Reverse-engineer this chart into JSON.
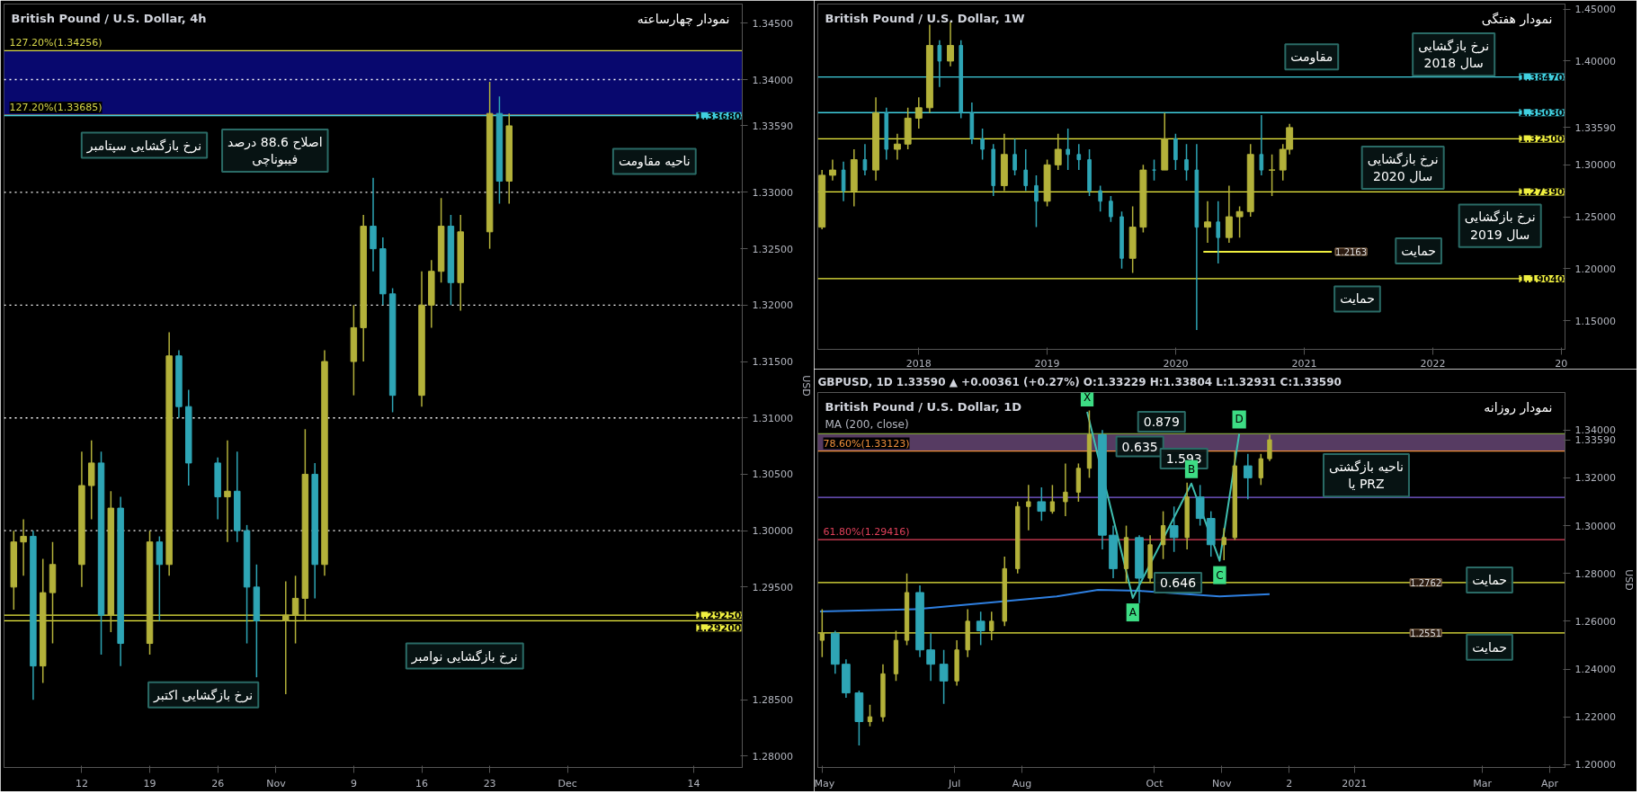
{
  "chart_data": [
    {
      "type": "candlestick",
      "title": "British Pound / U.S. Dollar, 4h",
      "subtitle": "نمودار چهارساعته",
      "ylabel": "USD",
      "xlim": [
        "2020-10-04",
        "2020-12-19"
      ],
      "ylim": [
        1.279,
        1.3467
      ],
      "xticks": [
        {
          "value": "2020-10-12",
          "label": "12"
        },
        {
          "value": "2020-10-19",
          "label": "19"
        },
        {
          "value": "2020-10-26",
          "label": "26"
        },
        {
          "value": "2020-11-01",
          "label": "Nov"
        },
        {
          "value": "2020-11-09",
          "label": "9"
        },
        {
          "value": "2020-11-16",
          "label": "16"
        },
        {
          "value": "2020-11-23",
          "label": "23"
        },
        {
          "value": "2020-12-01",
          "label": "Dec"
        },
        {
          "value": "2020-12-14",
          "label": "14"
        }
      ],
      "yticks": [
        {
          "value": 1.28,
          "label": "1.28000"
        },
        {
          "value": 1.285,
          "label": "1.28500"
        },
        {
          "value": 1.295,
          "label": "1.29500"
        },
        {
          "value": 1.3,
          "label": "1.30000"
        },
        {
          "value": 1.305,
          "label": "1.30500"
        },
        {
          "value": 1.31,
          "label": "1.31000"
        },
        {
          "value": 1.315,
          "label": "1.31500"
        },
        {
          "value": 1.32,
          "label": "1.32000"
        },
        {
          "value": 1.325,
          "label": "1.32500"
        },
        {
          "value": 1.33,
          "label": "1.33000"
        },
        {
          "value": 1.3359,
          "label": "1.33590"
        },
        {
          "value": 1.34,
          "label": "1.34000"
        },
        {
          "value": 1.345,
          "label": "1.34500"
        }
      ],
      "series": [
        {
          "type": "candlestick",
          "color": "#b3b13a",
          "x": [
            "2020-10-05",
            "2020-10-06",
            "2020-10-08",
            "2020-10-09",
            "2020-10-12",
            "2020-10-13",
            "2020-10-15",
            "2020-10-19",
            "2020-10-21",
            "2020-10-27",
            "2020-11-02",
            "2020-11-03",
            "2020-11-04",
            "2020-11-06",
            "2020-11-09",
            "2020-11-10",
            "2020-11-16",
            "2020-11-17",
            "2020-11-18",
            "2020-11-20",
            "2020-11-23",
            "2020-11-25"
          ],
          "ohlc": [
            [
              1.295,
              1.3,
              1.293,
              1.299
            ],
            [
              1.299,
              1.301,
              1.296,
              1.2995
            ],
            [
              1.288,
              1.2975,
              1.2865,
              1.2945
            ],
            [
              1.2945,
              1.299,
              1.29,
              1.297
            ],
            [
              1.297,
              1.307,
              1.295,
              1.304
            ],
            [
              1.304,
              1.308,
              1.301,
              1.306
            ],
            [
              1.2925,
              1.3035,
              1.291,
              1.302
            ],
            [
              1.29,
              1.3,
              1.289,
              1.299
            ],
            [
              1.297,
              1.3176,
              1.296,
              1.3155
            ],
            [
              1.303,
              1.308,
              1.299,
              1.3035
            ],
            [
              1.292,
              1.2955,
              1.2855,
              1.2925
            ],
            [
              1.2925,
              1.296,
              1.29,
              1.294
            ],
            [
              1.294,
              1.309,
              1.292,
              1.305
            ],
            [
              1.297,
              1.316,
              1.296,
              1.315
            ],
            [
              1.315,
              1.32,
              1.312,
              1.318
            ],
            [
              1.318,
              1.328,
              1.315,
              1.327
            ],
            [
              1.312,
              1.323,
              1.311,
              1.32
            ],
            [
              1.32,
              1.324,
              1.318,
              1.323
            ],
            [
              1.323,
              1.3295,
              1.322,
              1.327
            ],
            [
              1.322,
              1.328,
              1.3195,
              1.3265
            ],
            [
              1.3265,
              1.3398,
              1.325,
              1.337
            ],
            [
              1.331,
              1.337,
              1.329,
              1.3359
            ]
          ]
        },
        {
          "type": "candlestick",
          "color": "#2ea5b5",
          "x": [
            "2020-10-07",
            "2020-10-14",
            "2020-10-16",
            "2020-10-20",
            "2020-10-22",
            "2020-10-23",
            "2020-10-26",
            "2020-10-28",
            "2020-10-29",
            "2020-10-30",
            "2020-11-05",
            "2020-11-11",
            "2020-11-12",
            "2020-11-13",
            "2020-11-19",
            "2020-11-24"
          ],
          "ohlc": [
            [
              1.2995,
              1.3,
              1.285,
              1.288
            ],
            [
              1.306,
              1.307,
              1.289,
              1.2925
            ],
            [
              1.302,
              1.303,
              1.288,
              1.29
            ],
            [
              1.299,
              1.2995,
              1.292,
              1.297
            ],
            [
              1.3155,
              1.316,
              1.31,
              1.311
            ],
            [
              1.311,
              1.3125,
              1.304,
              1.306
            ],
            [
              1.306,
              1.3065,
              1.301,
              1.303
            ],
            [
              1.3035,
              1.307,
              1.299,
              1.3
            ],
            [
              1.3,
              1.3005,
              1.29,
              1.295
            ],
            [
              1.295,
              1.297,
              1.287,
              1.292
            ],
            [
              1.305,
              1.306,
              1.294,
              1.297
            ],
            [
              1.327,
              1.3313,
              1.323,
              1.325
            ],
            [
              1.325,
              1.326,
              1.32,
              1.321
            ],
            [
              1.321,
              1.3215,
              1.3105,
              1.312
            ],
            [
              1.327,
              1.328,
              1.32,
              1.322
            ],
            [
              1.337,
              1.3385,
              1.329,
              1.331
            ]
          ]
        }
      ],
      "bands": [
        {
          "axis": "y",
          "from": 1.33685,
          "to": 1.34256,
          "color": "#0a0a8a"
        }
      ],
      "ref_lines": [
        {
          "axis": "y",
          "value": 1.34,
          "color": "#ffffff",
          "line_style": "dotted"
        },
        {
          "axis": "y",
          "value": 1.33,
          "color": "#ffffff",
          "line_style": "dotted"
        },
        {
          "axis": "y",
          "value": 1.32,
          "color": "#ffffff",
          "line_style": "dotted"
        },
        {
          "axis": "y",
          "value": 1.31,
          "color": "#ffffff",
          "line_style": "dotted"
        },
        {
          "axis": "y",
          "value": 1.3,
          "color": "#ffffff",
          "line_style": "dotted"
        },
        {
          "axis": "y",
          "value": 1.34256,
          "color": "#d8d84a",
          "line_style": "solid",
          "label": "127.20%(1.34256)"
        },
        {
          "axis": "y",
          "value": 1.33685,
          "color": "#d8d84a",
          "line_style": "solid",
          "label": "127.20%(1.33685)"
        },
        {
          "axis": "y",
          "value": 1.3368,
          "color": "#40d0e0",
          "line_style": "solid"
        },
        {
          "axis": "y",
          "value": 1.2925,
          "color": "#f0f040",
          "line_style": "solid"
        },
        {
          "axis": "y",
          "value": 1.292,
          "color": "#f0f040",
          "line_style": "solid"
        }
      ],
      "annotations": [
        "نرخ بازگشایی سپتامبر",
        "اصلاح 88.6 درصد\nفیبوناچی",
        "ناحیه مقاومت",
        "نرخ بازگشایی اکتبر",
        "نرخ بازگشایی نوامبر",
        {
          "text": "1.33680",
          "x": "2020-12-19",
          "y": 1.3368
        },
        {
          "text": "1.29250",
          "x": "2020-12-19",
          "y": 1.2925
        },
        {
          "text": "1.29200",
          "x": "2020-12-19",
          "y": 1.292
        }
      ]
    },
    {
      "type": "candlestick",
      "title": "British Pound / U.S. Dollar, 1W",
      "subtitle": "نمودار هفتگی",
      "xlim": [
        "2017-03-20",
        "2023-01-12"
      ],
      "ylim": [
        1.1223,
        1.4549
      ],
      "xticks": [
        {
          "value": "2018",
          "label": "2018"
        },
        {
          "value": "2019",
          "label": "2019"
        },
        {
          "value": "2020",
          "label": "2020"
        },
        {
          "value": "2021",
          "label": "2021"
        },
        {
          "value": "2022",
          "label": "2022"
        },
        {
          "value": "2023",
          "label": "20"
        }
      ],
      "yticks": [
        {
          "value": 1.15,
          "label": "1.15000"
        },
        {
          "value": 1.2,
          "label": "1.20000"
        },
        {
          "value": 1.25,
          "label": "1.25000"
        },
        {
          "value": 1.3,
          "label": "1.30000"
        },
        {
          "value": 1.3359,
          "label": "1.33590"
        },
        {
          "value": 1.4,
          "label": "1.40000"
        },
        {
          "value": 1.45,
          "label": "1.45000"
        }
      ],
      "series": [
        {
          "type": "candlestick",
          "color": "#b3b13a",
          "x": [
            "2017-04",
            "2017-05",
            "2017-07",
            "2017-09",
            "2017-11",
            "2017-12",
            "2018-01",
            "2018-02",
            "2018-04",
            "2018-09",
            "2019-01",
            "2019-02",
            "2019-09",
            "2019-10",
            "2019-12",
            "2020-04",
            "2020-06",
            "2020-07",
            "2020-08",
            "2020-10",
            "2020-11",
            "2020-11-20"
          ],
          "ohlc": [
            [
              1.24,
              1.295,
              1.238,
              1.29
            ],
            [
              1.29,
              1.305,
              1.285,
              1.295
            ],
            [
              1.275,
              1.315,
              1.26,
              1.305
            ],
            [
              1.295,
              1.365,
              1.285,
              1.35
            ],
            [
              1.315,
              1.33,
              1.305,
              1.32
            ],
            [
              1.32,
              1.355,
              1.315,
              1.345
            ],
            [
              1.345,
              1.365,
              1.335,
              1.355
            ],
            [
              1.355,
              1.435,
              1.35,
              1.415
            ],
            [
              1.4,
              1.4377,
              1.395,
              1.415
            ],
            [
              1.28,
              1.33,
              1.275,
              1.31
            ],
            [
              1.265,
              1.305,
              1.26,
              1.3
            ],
            [
              1.3,
              1.33,
              1.295,
              1.315
            ],
            [
              1.21,
              1.26,
              1.196,
              1.24
            ],
            [
              1.24,
              1.3,
              1.235,
              1.295
            ],
            [
              1.295,
              1.35,
              1.295,
              1.325
            ],
            [
              1.24,
              1.265,
              1.225,
              1.245
            ],
            [
              1.23,
              1.28,
              1.225,
              1.25
            ],
            [
              1.25,
              1.26,
              1.23,
              1.255
            ],
            [
              1.255,
              1.32,
              1.25,
              1.31
            ],
            [
              1.295,
              1.31,
              1.27,
              1.295
            ],
            [
              1.295,
              1.32,
              1.285,
              1.315
            ],
            [
              1.315,
              1.3395,
              1.31,
              1.3359
            ]
          ]
        },
        {
          "type": "candlestick",
          "color": "#2ea5b5",
          "x": [
            "2017-06",
            "2017-08",
            "2017-10",
            "2018-03",
            "2018-05",
            "2018-06",
            "2018-07",
            "2018-08",
            "2018-10",
            "2018-11",
            "2018-12",
            "2019-03",
            "2019-04",
            "2019-05",
            "2019-06",
            "2019-07",
            "2019-08",
            "2019-11",
            "2020-01",
            "2020-02",
            "2020-03",
            "2020-05",
            "2020-09"
          ],
          "ohlc": [
            [
              1.295,
              1.303,
              1.265,
              1.275
            ],
            [
              1.305,
              1.32,
              1.29,
              1.295
            ],
            [
              1.35,
              1.355,
              1.305,
              1.315
            ],
            [
              1.415,
              1.42,
              1.375,
              1.4
            ],
            [
              1.415,
              1.42,
              1.345,
              1.35
            ],
            [
              1.35,
              1.36,
              1.32,
              1.325
            ],
            [
              1.325,
              1.335,
              1.305,
              1.315
            ],
            [
              1.315,
              1.32,
              1.27,
              1.28
            ],
            [
              1.31,
              1.325,
              1.29,
              1.295
            ],
            [
              1.295,
              1.315,
              1.275,
              1.28
            ],
            [
              1.28,
              1.29,
              1.24,
              1.265
            ],
            [
              1.315,
              1.335,
              1.295,
              1.31
            ],
            [
              1.31,
              1.32,
              1.295,
              1.305
            ],
            [
              1.305,
              1.315,
              1.27,
              1.275
            ],
            [
              1.275,
              1.28,
              1.255,
              1.265
            ],
            [
              1.265,
              1.27,
              1.245,
              1.25
            ],
            [
              1.25,
              1.255,
              1.2,
              1.21
            ],
            [
              1.295,
              1.305,
              1.285,
              1.295
            ],
            [
              1.325,
              1.33,
              1.295,
              1.305
            ],
            [
              1.305,
              1.32,
              1.285,
              1.295
            ],
            [
              1.295,
              1.32,
              1.141,
              1.24
            ],
            [
              1.245,
              1.265,
              1.205,
              1.23
            ],
            [
              1.31,
              1.348,
              1.29,
              1.295
            ]
          ]
        },
        {
          "type": "line",
          "color": "#f0f040",
          "x": [
            "2020-03-20",
            "2021-03-20"
          ],
          "values": [
            1.2163,
            1.2163
          ]
        }
      ],
      "ref_lines": [
        {
          "axis": "y",
          "value": 1.3847,
          "color": "#40d0e0",
          "line_style": "solid"
        },
        {
          "axis": "y",
          "value": 1.3503,
          "color": "#40d0e0",
          "line_style": "solid"
        },
        {
          "axis": "y",
          "value": 1.325,
          "color": "#f0f040",
          "line_style": "solid"
        },
        {
          "axis": "y",
          "value": 1.2739,
          "color": "#f0f040",
          "line_style": "solid"
        },
        {
          "axis": "y",
          "value": 1.1904,
          "color": "#f0f040",
          "line_style": "solid"
        }
      ],
      "annotations": [
        "مقاومت",
        "نرخ بازگشایی\nسال 2018",
        "نرخ بازگشایی\nسال 2020",
        "نرخ بازگشایی\nسال 2019",
        "حمایت",
        "حمایت",
        {
          "text": "1.38470",
          "x": "2023-01-12",
          "y": 1.3847
        },
        {
          "text": "1.35030",
          "x": "2023-01-12",
          "y": 1.3503
        },
        {
          "text": "1.32500",
          "x": "2023-01-12",
          "y": 1.325
        },
        {
          "text": "1.27390",
          "x": "2023-01-12",
          "y": 1.2739
        },
        {
          "text": "1.19040",
          "x": "2023-01-12",
          "y": 1.1904
        },
        {
          "text": "1.2163",
          "x": "2021-03-20",
          "y": 1.2163
        }
      ]
    },
    {
      "type": "candlestick",
      "title": "British Pound / U.S. Dollar, 1D",
      "subtitle": "نمودار روزانه",
      "ylabel": "USD",
      "xlim": [
        "2020-04-29",
        "2021-04-08"
      ],
      "ylim": [
        1.1988,
        1.3557
      ],
      "xticks": [
        {
          "value": "2020-05-01",
          "label": "May"
        },
        {
          "value": "2020-07-01",
          "label": "Jul"
        },
        {
          "value": "2020-08-01",
          "label": "Aug"
        },
        {
          "value": "2020-10-01",
          "label": "Oct"
        },
        {
          "value": "2020-11-01",
          "label": "Nov"
        },
        {
          "value": "2020-12-02",
          "label": "2"
        },
        {
          "value": "2021-01-01",
          "label": "2021"
        },
        {
          "value": "2021-03-01",
          "label": "Mar"
        },
        {
          "value": "2021-04-01",
          "label": "Apr"
        }
      ],
      "yticks": [
        {
          "value": 1.2,
          "label": "1.20000"
        },
        {
          "value": 1.22,
          "label": "1.22000"
        },
        {
          "value": 1.24,
          "label": "1.24000"
        },
        {
          "value": 1.26,
          "label": "1.26000"
        },
        {
          "value": 1.28,
          "label": "1.28000"
        },
        {
          "value": 1.3,
          "label": "1.30000"
        },
        {
          "value": 1.32,
          "label": "1.32000"
        },
        {
          "value": 1.3359,
          "label": "1.33590"
        },
        {
          "value": 1.34,
          "label": "1.34000"
        }
      ],
      "series": [
        {
          "type": "candlestick",
          "color": "#b3b13a",
          "x": [
            "2020-05-01",
            "2020-05-23",
            "2020-05-29",
            "2020-06-04",
            "2020-06-09",
            "2020-07-02",
            "2020-07-07",
            "2020-07-18",
            "2020-07-24",
            "2020-07-30",
            "2020-08-04",
            "2020-08-15",
            "2020-08-21",
            "2020-08-27",
            "2020-09-01",
            "2020-09-18",
            "2020-09-29",
            "2020-10-05",
            "2020-10-16",
            "2020-11-02",
            "2020-11-07",
            "2020-11-19",
            "2020-11-23"
          ],
          "ohlc": [
            [
              1.252,
              1.265,
              1.245,
              1.255
            ],
            [
              1.218,
              1.225,
              1.216,
              1.22
            ],
            [
              1.22,
              1.242,
              1.218,
              1.238
            ],
            [
              1.238,
              1.256,
              1.235,
              1.252
            ],
            [
              1.252,
              1.28,
              1.25,
              1.272
            ],
            [
              1.235,
              1.252,
              1.233,
              1.248
            ],
            [
              1.248,
              1.265,
              1.245,
              1.26
            ],
            [
              1.256,
              1.264,
              1.252,
              1.26
            ],
            [
              1.26,
              1.287,
              1.258,
              1.282
            ],
            [
              1.282,
              1.31,
              1.28,
              1.308
            ],
            [
              1.308,
              1.317,
              1.298,
              1.31
            ],
            [
              1.306,
              1.317,
              1.305,
              1.31
            ],
            [
              1.31,
              1.326,
              1.304,
              1.314
            ],
            [
              1.314,
              1.326,
              1.31,
              1.324
            ],
            [
              1.324,
              1.3482,
              1.32,
              1.338
            ],
            [
              1.282,
              1.3,
              1.276,
              1.295
            ],
            [
              1.278,
              1.296,
              1.276,
              1.292
            ],
            [
              1.292,
              1.306,
              1.286,
              1.3
            ],
            [
              1.295,
              1.318,
              1.29,
              1.312
            ],
            [
              1.292,
              1.299,
              1.2855,
              1.295
            ],
            [
              1.295,
              1.331,
              1.294,
              1.325
            ],
            [
              1.32,
              1.33,
              1.317,
              1.328
            ],
            [
              1.328,
              1.338,
              1.327,
              1.3359
            ]
          ]
        },
        {
          "type": "candlestick",
          "color": "#2ea5b5",
          "x": [
            "2020-05-07",
            "2020-05-12",
            "2020-05-18",
            "2020-06-15",
            "2020-06-20",
            "2020-06-26",
            "2020-07-13",
            "2020-08-10",
            "2020-09-07",
            "2020-09-12",
            "2020-09-24",
            "2020-10-10",
            "2020-10-22",
            "2020-10-27",
            "2020-11-13"
          ],
          "ohlc": [
            [
              1.255,
              1.256,
              1.238,
              1.242
            ],
            [
              1.242,
              1.244,
              1.228,
              1.23
            ],
            [
              1.23,
              1.231,
              1.208,
              1.218
            ],
            [
              1.272,
              1.275,
              1.245,
              1.248
            ],
            [
              1.248,
              1.255,
              1.235,
              1.242
            ],
            [
              1.242,
              1.248,
              1.2254,
              1.235
            ],
            [
              1.26,
              1.264,
              1.25,
              1.256
            ],
            [
              1.31,
              1.316,
              1.302,
              1.306
            ],
            [
              1.338,
              1.34,
              1.29,
              1.296
            ],
            [
              1.296,
              1.3,
              1.278,
              1.282
            ],
            [
              1.295,
              1.296,
              1.2676,
              1.278
            ],
            [
              1.3,
              1.308,
              1.289,
              1.295
            ],
            [
              1.312,
              1.317,
              1.3,
              1.303
            ],
            [
              1.303,
              1.306,
              1.287,
              1.292
            ],
            [
              1.325,
              1.33,
              1.311,
              1.32
            ]
          ]
        },
        {
          "type": "line",
          "color": "#2e7fe0",
          "x": [
            "2020-04-30",
            "2020-06-13",
            "2020-07-20",
            "2020-08-17",
            "2020-09-05",
            "2020-09-24",
            "2020-10-31",
            "2020-11-23"
          ],
          "values": [
            1.2641,
            1.265,
            1.268,
            1.2704,
            1.2731,
            1.2727,
            1.2704,
            1.2713
          ]
        },
        {
          "type": "line",
          "color": "#3fbfb0",
          "x": [
            "2020-08-31",
            "2020-09-21",
            "2020-10-18",
            "2020-10-31",
            "2020-11-09"
          ],
          "values": [
            1.3476,
            1.2697,
            1.3176,
            1.2853,
            1.3384
          ]
        }
      ],
      "bands": [
        {
          "axis": "y",
          "from": 1.33123,
          "to": 1.33843,
          "color": "#6b4a7a"
        }
      ],
      "ref_lines": [
        {
          "axis": "y",
          "value": 1.33843,
          "color": "#7fa03c",
          "line_style": "solid"
        },
        {
          "axis": "y",
          "value": 1.33123,
          "color": "#f0903c",
          "line_style": "solid",
          "label": "78.60%(1.33123)"
        },
        {
          "axis": "y",
          "value": 1.3118,
          "color": "#8060e0",
          "line_style": "solid"
        },
        {
          "axis": "y",
          "value": 1.29416,
          "color": "#e0405a",
          "line_style": "solid",
          "label": "61.80%(1.29416)"
        },
        {
          "axis": "y",
          "value": 1.2762,
          "color": "#f0f040",
          "line_style": "solid"
        },
        {
          "axis": "y",
          "value": 1.2551,
          "color": "#f0f040",
          "line_style": "solid"
        }
      ],
      "annotations": [
        "GBPUSD, 1D 1.33590 ▲ +0.00361 (+0.27%) O:1.33229 H:1.33804 L:1.32931 C:1.33590",
        "MA (200, close)",
        "0.879",
        "0.635",
        "1.593",
        "0.646",
        "ناحیه بازگشتی\nیا PRZ",
        "حمایت",
        "حمایت",
        {
          "text": "X",
          "x": "2020-08-31",
          "y": 1.3476
        },
        {
          "text": "A",
          "x": "2020-09-21",
          "y": 1.2697
        },
        {
          "text": "B",
          "x": "2020-10-18",
          "y": 1.3176
        },
        {
          "text": "C",
          "x": "2020-10-31",
          "y": 1.2853
        },
        {
          "text": "D",
          "x": "2020-11-09",
          "y": 1.3384
        },
        {
          "text": "1.2762",
          "x": "2021-01-25",
          "y": 1.2762
        },
        {
          "text": "1.2551",
          "x": "2021-01-25",
          "y": 1.2551
        }
      ]
    }
  ]
}
